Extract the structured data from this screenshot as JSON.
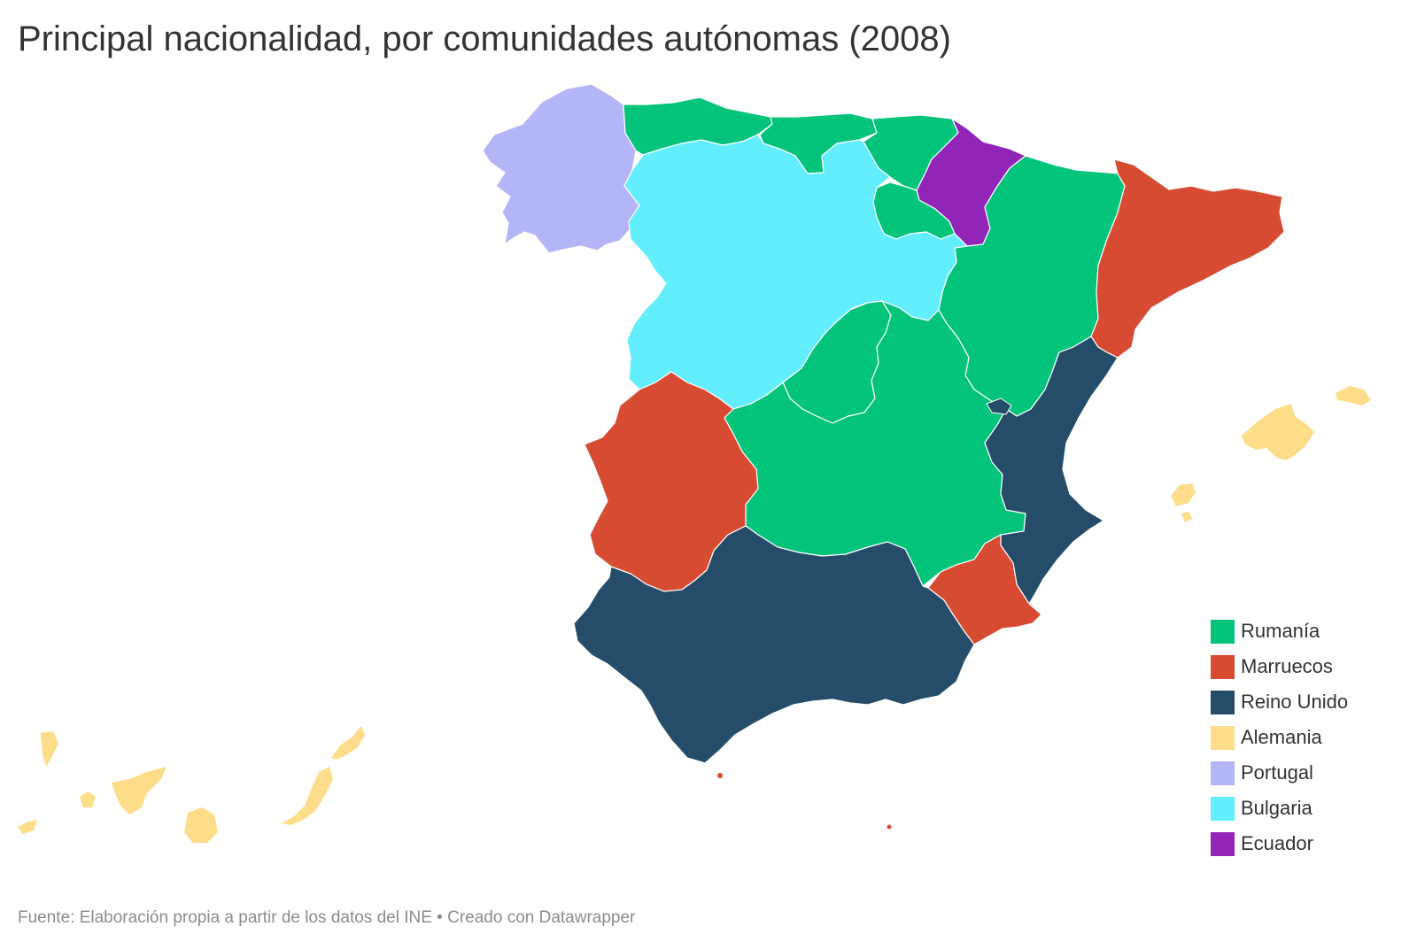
{
  "title": "Principal nacionalidad, por comunidades autónomas (2008)",
  "source": "Fuente: Elaboración propia a partir de los datos del INE • Creado con Datawrapper",
  "legend": [
    {
      "label": "Rumanía",
      "color": "#04c37a"
    },
    {
      "label": "Marruecos",
      "color": "#d64b31"
    },
    {
      "label": "Reino Unido",
      "color": "#254c69"
    },
    {
      "label": "Alemania",
      "color": "#fddc8a"
    },
    {
      "label": "Portugal",
      "color": "#b4b5f7"
    },
    {
      "label": "Bulgaria",
      "color": "#62eefc"
    },
    {
      "label": "Ecuador",
      "color": "#9324b8"
    }
  ],
  "regions": [
    {
      "name": "Galicia",
      "nationality": "Portugal"
    },
    {
      "name": "Asturias",
      "nationality": "Rumanía"
    },
    {
      "name": "Cantabria",
      "nationality": "Rumanía"
    },
    {
      "name": "País Vasco",
      "nationality": "Rumanía"
    },
    {
      "name": "Navarra",
      "nationality": "Ecuador"
    },
    {
      "name": "La Rioja",
      "nationality": "Rumanía"
    },
    {
      "name": "Aragón",
      "nationality": "Rumanía"
    },
    {
      "name": "Cataluña",
      "nationality": "Marruecos"
    },
    {
      "name": "Castilla y León",
      "nationality": "Bulgaria"
    },
    {
      "name": "Madrid",
      "nationality": "Rumanía"
    },
    {
      "name": "Castilla-La Mancha",
      "nationality": "Rumanía"
    },
    {
      "name": "Extremadura",
      "nationality": "Marruecos"
    },
    {
      "name": "Comunidad Valenciana",
      "nationality": "Reino Unido"
    },
    {
      "name": "Murcia",
      "nationality": "Marruecos"
    },
    {
      "name": "Andalucía",
      "nationality": "Reino Unido"
    },
    {
      "name": "Islas Baleares",
      "nationality": "Alemania"
    },
    {
      "name": "Canarias",
      "nationality": "Alemania"
    },
    {
      "name": "Ceuta",
      "nationality": "Marruecos"
    },
    {
      "name": "Melilla",
      "nationality": "Marruecos"
    }
  ]
}
